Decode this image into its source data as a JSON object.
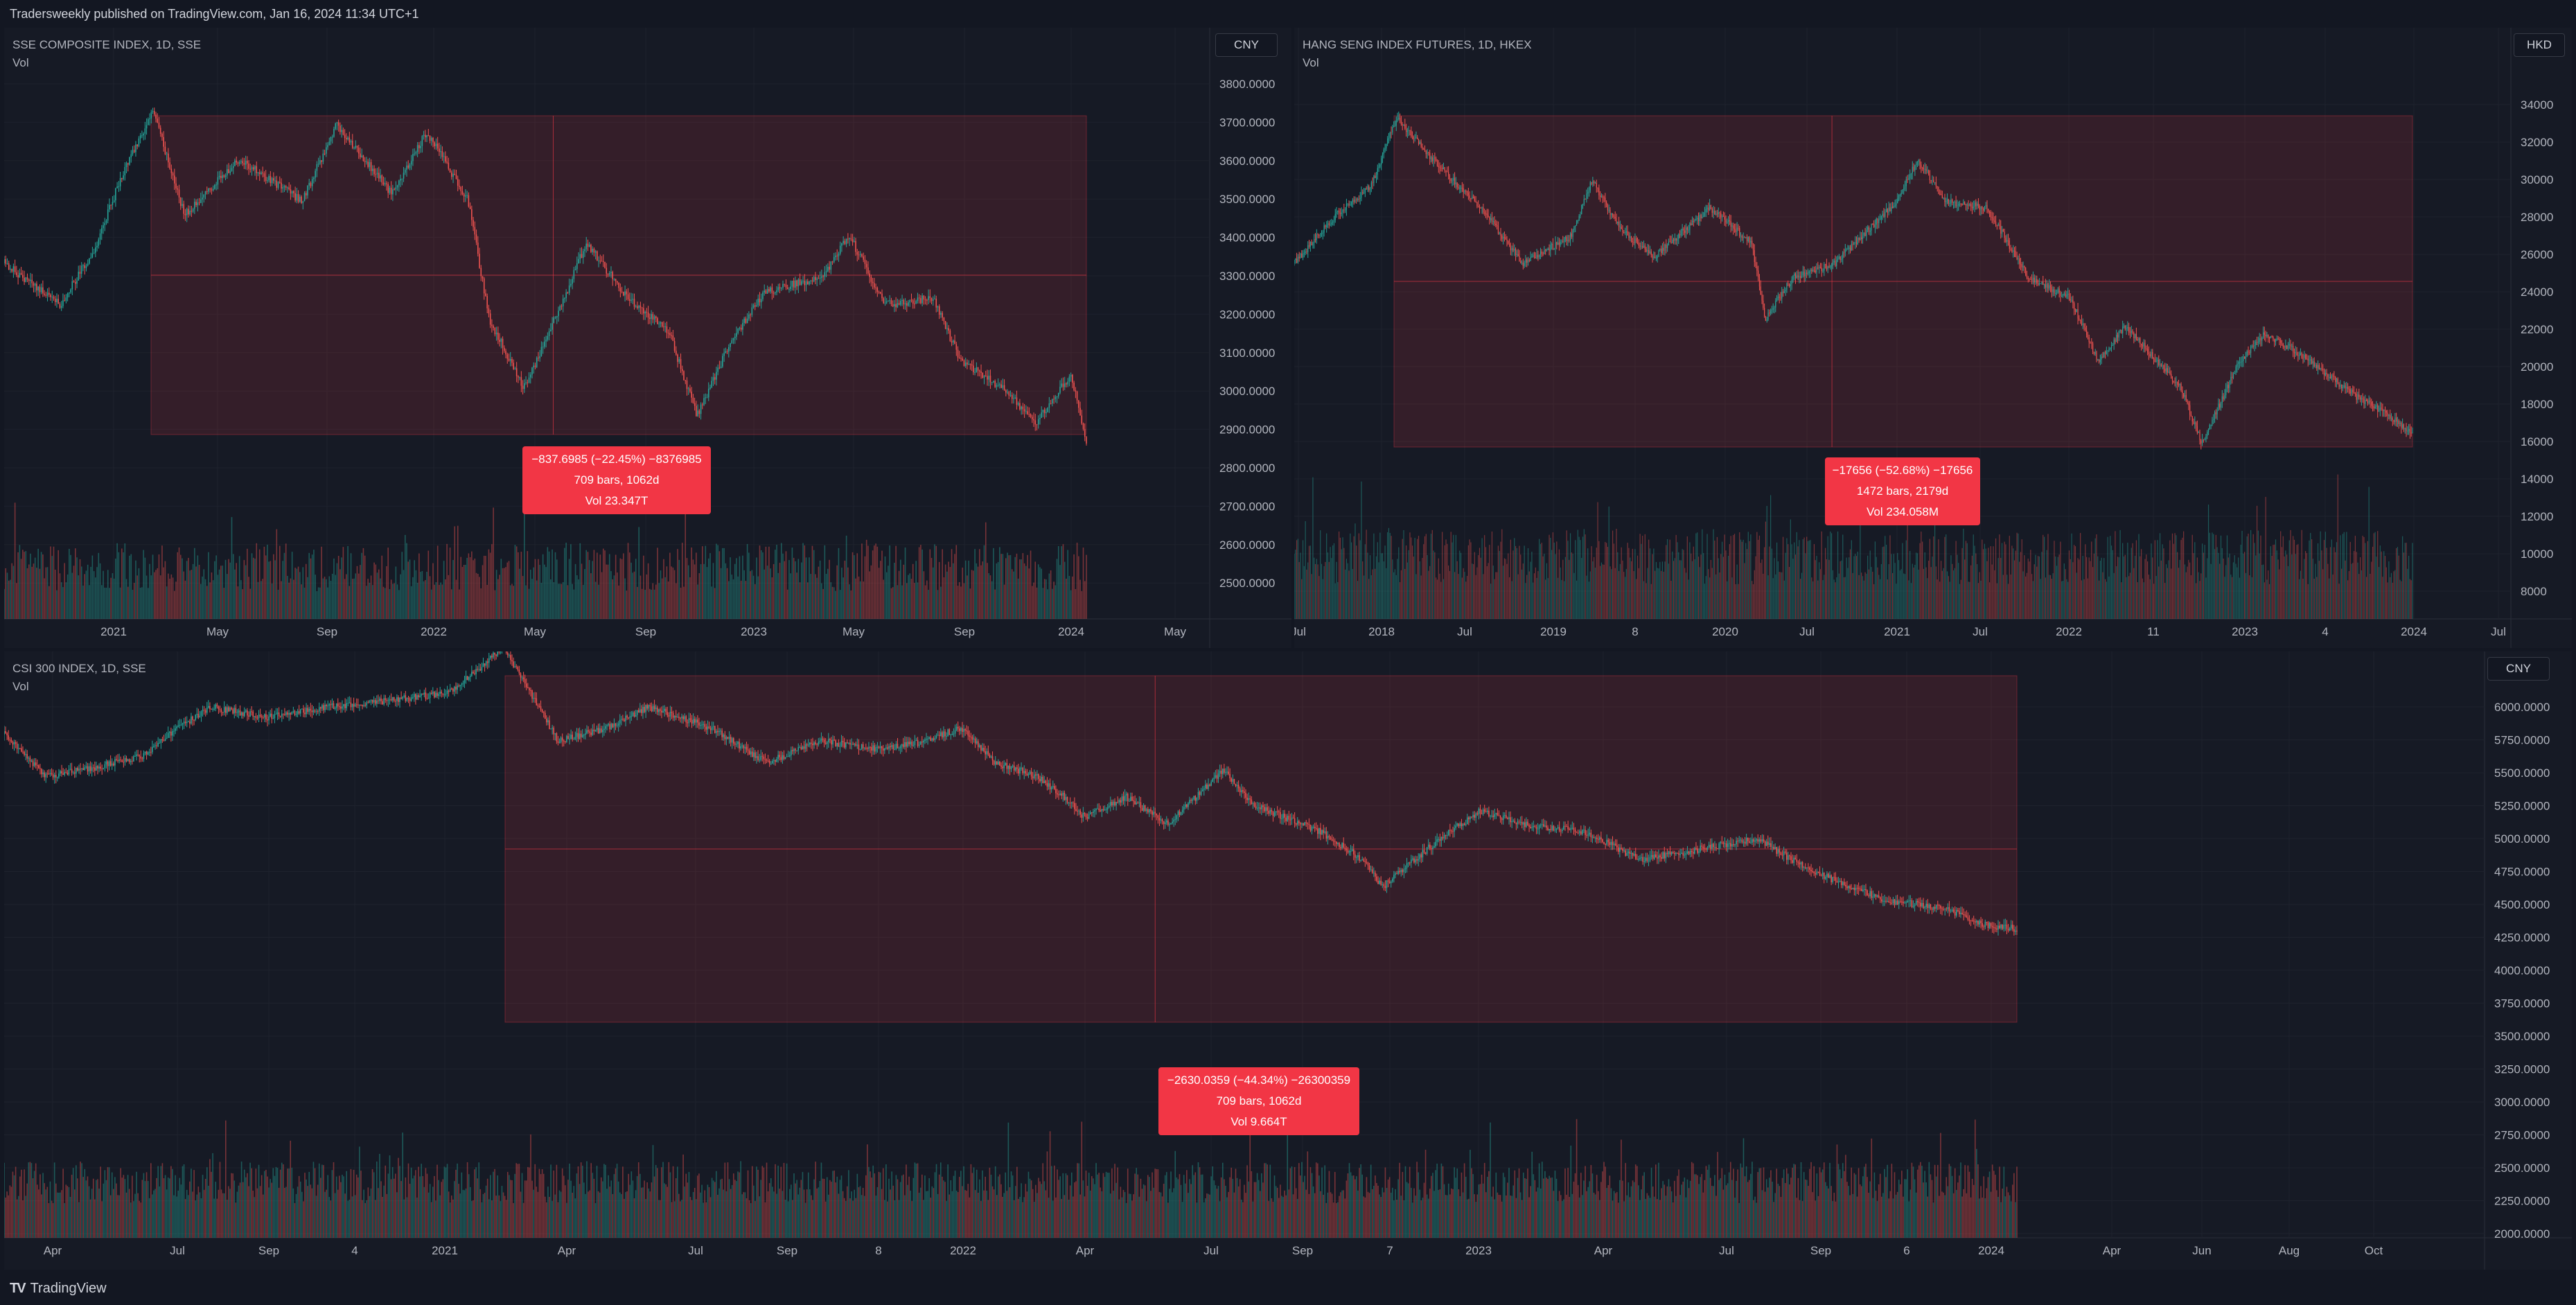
{
  "header": {
    "publish_line": "Tradersweekly published on TradingView.com, Jan 16, 2024 11:34 UTC+1"
  },
  "footer": {
    "brand": "TradingView"
  },
  "charts": {
    "sse": {
      "title": "SSE COMPOSITE INDEX, 1D, SSE",
      "indicator": "Vol",
      "currency": "CNY",
      "measure": [
        "−837.6985 (−22.45%) −8376985",
        "709 bars, 1062d",
        "Vol 23.347T"
      ],
      "yticks": [
        "3800.0000",
        "3700.0000",
        "3600.0000",
        "3500.0000",
        "3400.0000",
        "3300.0000",
        "3200.0000",
        "3100.0000",
        "3000.0000",
        "2900.0000",
        "2800.0000",
        "2700.0000",
        "2600.0000",
        "2500.0000"
      ],
      "xticks": [
        "2021",
        "May",
        "Sep",
        "2022",
        "May",
        "Sep",
        "2023",
        "May",
        "Sep",
        "2024",
        "May"
      ],
      "colors": {
        "up": "#26a69a",
        "down": "#ef5350",
        "range": "#f23645"
      }
    },
    "hsi": {
      "title": "HANG SENG INDEX FUTURES, 1D, HKEX",
      "indicator": "Vol",
      "currency": "HKD",
      "measure": [
        "−17656 (−52.68%) −17656",
        "1472 bars, 2179d",
        "Vol 234.058M"
      ],
      "yticks": [
        "34000",
        "32000",
        "30000",
        "28000",
        "26000",
        "24000",
        "22000",
        "20000",
        "18000",
        "16000",
        "14000",
        "12000",
        "10000",
        "8000"
      ],
      "xticks": [
        "Jul",
        "2018",
        "Jul",
        "2019",
        "8",
        "2020",
        "Jul",
        "2021",
        "Jul",
        "2022",
        "11",
        "2023",
        "4",
        "2024",
        "Jul"
      ]
    },
    "csi": {
      "title": "CSI 300 INDEX, 1D, SSE",
      "indicator": "Vol",
      "currency": "CNY",
      "measure": [
        "−2630.0359 (−44.34%) −26300359",
        "709 bars, 1062d",
        "Vol 9.664T"
      ],
      "yticks": [
        "6000.0000",
        "5750.0000",
        "5500.0000",
        "5250.0000",
        "5000.0000",
        "4750.0000",
        "4500.0000",
        "4250.0000",
        "4000.0000",
        "3750.0000",
        "3500.0000",
        "3250.0000",
        "3000.0000",
        "2750.0000",
        "2500.0000",
        "2250.0000",
        "2000.0000"
      ],
      "xticks": [
        "Apr",
        "Jul",
        "Sep",
        "4",
        "2021",
        "Apr",
        "Jul",
        "Sep",
        "8",
        "2022",
        "Apr",
        "Jul",
        "Sep",
        "7",
        "2023",
        "Apr",
        "Jul",
        "Sep",
        "6",
        "2024",
        "Apr",
        "Jun",
        "Aug",
        "Oct"
      ]
    }
  }
}
